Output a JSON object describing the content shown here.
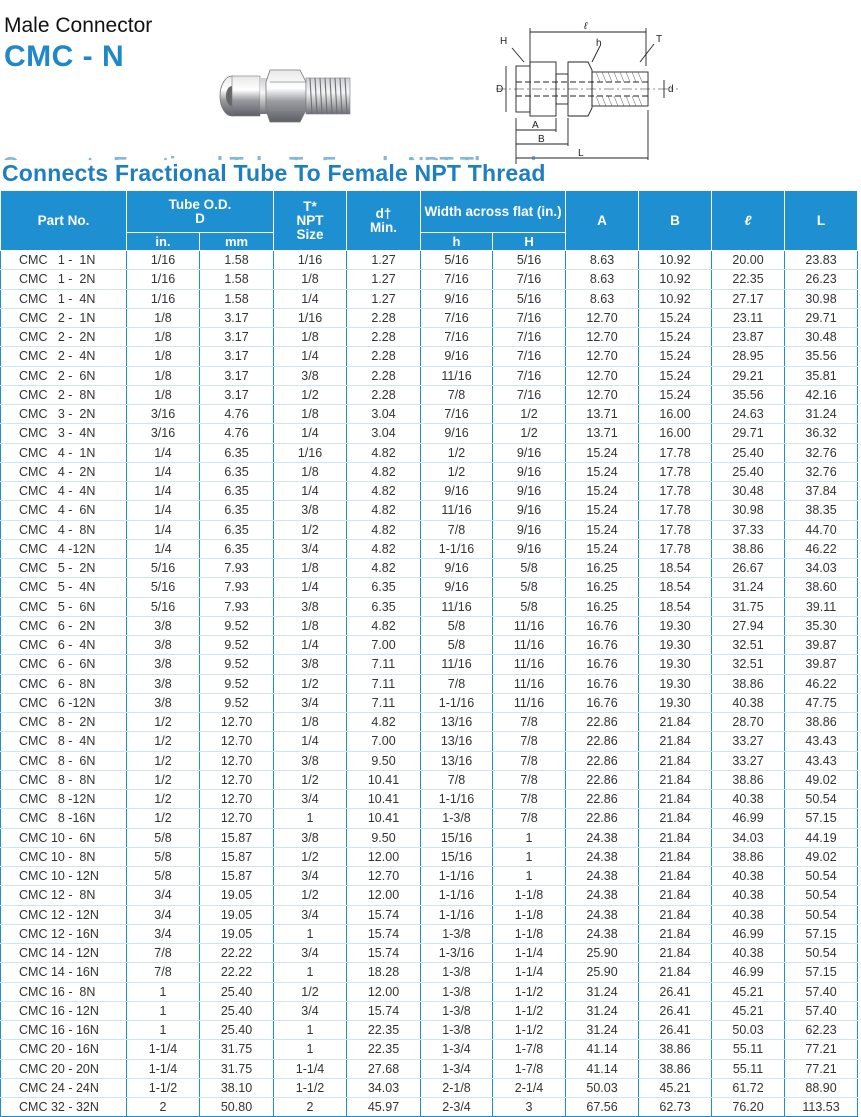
{
  "header": {
    "subtitle": "Male Connector",
    "title": "CMC - N"
  },
  "diagram": {
    "labels": {
      "l": "ℓ",
      "h": "h",
      "H": "H",
      "T": "T",
      "D": "D",
      "d": "d",
      "A": "A",
      "B": "B",
      "L": "L"
    }
  },
  "section": {
    "heading": "Connects Fractional Tube To Female NPT Thread"
  },
  "table": {
    "headers": {
      "part_no": "Part No.",
      "tube_od": "Tube O.D.",
      "tube_od_d": "D",
      "t_npt_1": "T*",
      "t_npt_2": "NPT",
      "t_npt_3": "Size",
      "d_min_1": "d†",
      "d_min_2": "Min.",
      "width": "Width across flat (in.)",
      "a": "A",
      "b": "B",
      "l_small": "ℓ",
      "l_big": "L",
      "in": "in.",
      "mm": "mm",
      "h": "h",
      "H": "H"
    },
    "rows": [
      [
        "CMC   1 -  1N",
        "1/16",
        "1.58",
        "1/16",
        "1.27",
        "5/16",
        "5/16",
        "8.63",
        "10.92",
        "20.00",
        "23.83"
      ],
      [
        "CMC   1 -  2N",
        "1/16",
        "1.58",
        "1/8",
        "1.27",
        "7/16",
        "7/16",
        "8.63",
        "10.92",
        "22.35",
        "26.23"
      ],
      [
        "CMC   1 -  4N",
        "1/16",
        "1.58",
        "1/4",
        "1.27",
        "9/16",
        "5/16",
        "8.63",
        "10.92",
        "27.17",
        "30.98"
      ],
      [
        "CMC   2 -  1N",
        "1/8",
        "3.17",
        "1/16",
        "2.28",
        "7/16",
        "7/16",
        "12.70",
        "15.24",
        "23.11",
        "29.71"
      ],
      [
        "CMC   2 -  2N",
        "1/8",
        "3.17",
        "1/8",
        "2.28",
        "7/16",
        "7/16",
        "12.70",
        "15.24",
        "23.87",
        "30.48"
      ],
      [
        "CMC   2 -  4N",
        "1/8",
        "3.17",
        "1/4",
        "2.28",
        "9/16",
        "7/16",
        "12.70",
        "15.24",
        "28.95",
        "35.56"
      ],
      [
        "CMC   2 -  6N",
        "1/8",
        "3.17",
        "3/8",
        "2.28",
        "11/16",
        "7/16",
        "12.70",
        "15.24",
        "29.21",
        "35.81"
      ],
      [
        "CMC   2 -  8N",
        "1/8",
        "3.17",
        "1/2",
        "2.28",
        "7/8",
        "7/16",
        "12.70",
        "15.24",
        "35.56",
        "42.16"
      ],
      [
        "CMC   3 -  2N",
        "3/16",
        "4.76",
        "1/8",
        "3.04",
        "7/16",
        "1/2",
        "13.71",
        "16.00",
        "24.63",
        "31.24"
      ],
      [
        "CMC   3 -  4N",
        "3/16",
        "4.76",
        "1/4",
        "3.04",
        "9/16",
        "1/2",
        "13.71",
        "16.00",
        "29.71",
        "36.32"
      ],
      [
        "CMC   4 -  1N",
        "1/4",
        "6.35",
        "1/16",
        "4.82",
        "1/2",
        "9/16",
        "15.24",
        "17.78",
        "25.40",
        "32.76"
      ],
      [
        "CMC   4 -  2N",
        "1/4",
        "6.35",
        "1/8",
        "4.82",
        "1/2",
        "9/16",
        "15.24",
        "17.78",
        "25.40",
        "32.76"
      ],
      [
        "CMC   4 -  4N",
        "1/4",
        "6.35",
        "1/4",
        "4.82",
        "9/16",
        "9/16",
        "15.24",
        "17.78",
        "30.48",
        "37.84"
      ],
      [
        "CMC   4 -  6N",
        "1/4",
        "6.35",
        "3/8",
        "4.82",
        "11/16",
        "9/16",
        "15.24",
        "17.78",
        "30.98",
        "38.35"
      ],
      [
        "CMC   4 -  8N",
        "1/4",
        "6.35",
        "1/2",
        "4.82",
        "7/8",
        "9/16",
        "15.24",
        "17.78",
        "37.33",
        "44.70"
      ],
      [
        "CMC   4 -12N",
        "1/4",
        "6.35",
        "3/4",
        "4.82",
        "1-1/16",
        "9/16",
        "15.24",
        "17.78",
        "38.86",
        "46.22"
      ],
      [
        "CMC   5 -  2N",
        "5/16",
        "7.93",
        "1/8",
        "4.82",
        "9/16",
        "5/8",
        "16.25",
        "18.54",
        "26.67",
        "34.03"
      ],
      [
        "CMC   5 -  4N",
        "5/16",
        "7.93",
        "1/4",
        "6.35",
        "9/16",
        "5/8",
        "16.25",
        "18.54",
        "31.24",
        "38.60"
      ],
      [
        "CMC   5 -  6N",
        "5/16",
        "7.93",
        "3/8",
        "6.35",
        "11/16",
        "5/8",
        "16.25",
        "18.54",
        "31.75",
        "39.11"
      ],
      [
        "CMC   6 -  2N",
        "3/8",
        "9.52",
        "1/8",
        "4.82",
        "5/8",
        "11/16",
        "16.76",
        "19.30",
        "27.94",
        "35.30"
      ],
      [
        "CMC   6 -  4N",
        "3/8",
        "9.52",
        "1/4",
        "7.00",
        "5/8",
        "11/16",
        "16.76",
        "19.30",
        "32.51",
        "39.87"
      ],
      [
        "CMC   6 -  6N",
        "3/8",
        "9.52",
        "3/8",
        "7.11",
        "11/16",
        "11/16",
        "16.76",
        "19.30",
        "32.51",
        "39.87"
      ],
      [
        "CMC   6 -  8N",
        "3/8",
        "9.52",
        "1/2",
        "7.11",
        "7/8",
        "11/16",
        "16.76",
        "19.30",
        "38.86",
        "46.22"
      ],
      [
        "CMC   6 -12N",
        "3/8",
        "9.52",
        "3/4",
        "7.11",
        "1-1/16",
        "11/16",
        "16.76",
        "19.30",
        "40.38",
        "47.75"
      ],
      [
        "CMC   8 -  2N",
        "1/2",
        "12.70",
        "1/8",
        "4.82",
        "13/16",
        "7/8",
        "22.86",
        "21.84",
        "28.70",
        "38.86"
      ],
      [
        "CMC   8 -  4N",
        "1/2",
        "12.70",
        "1/4",
        "7.00",
        "13/16",
        "7/8",
        "22.86",
        "21.84",
        "33.27",
        "43.43"
      ],
      [
        "CMC   8 -  6N",
        "1/2",
        "12.70",
        "3/8",
        "9.50",
        "13/16",
        "7/8",
        "22.86",
        "21.84",
        "33.27",
        "43.43"
      ],
      [
        "CMC   8 -  8N",
        "1/2",
        "12.70",
        "1/2",
        "10.41",
        "7/8",
        "7/8",
        "22.86",
        "21.84",
        "38.86",
        "49.02"
      ],
      [
        "CMC   8 -12N",
        "1/2",
        "12.70",
        "3/4",
        "10.41",
        "1-1/16",
        "7/8",
        "22.86",
        "21.84",
        "40.38",
        "50.54"
      ],
      [
        "CMC   8 -16N",
        "1/2",
        "12.70",
        "1",
        "10.41",
        "1-3/8",
        "7/8",
        "22.86",
        "21.84",
        "46.99",
        "57.15"
      ],
      [
        "CMC 10 -  6N",
        "5/8",
        "15.87",
        "3/8",
        "9.50",
        "15/16",
        "1",
        "24.38",
        "21.84",
        "34.03",
        "44.19"
      ],
      [
        "CMC 10 -  8N",
        "5/8",
        "15.87",
        "1/2",
        "12.00",
        "15/16",
        "1",
        "24.38",
        "21.84",
        "38.86",
        "49.02"
      ],
      [
        "CMC 10 - 12N",
        "5/8",
        "15.87",
        "3/4",
        "12.70",
        "1-1/16",
        "1",
        "24.38",
        "21.84",
        "40.38",
        "50.54"
      ],
      [
        "CMC 12 -  8N",
        "3/4",
        "19.05",
        "1/2",
        "12.00",
        "1-1/16",
        "1-1/8",
        "24.38",
        "21.84",
        "40.38",
        "50.54"
      ],
      [
        "CMC 12 - 12N",
        "3/4",
        "19.05",
        "3/4",
        "15.74",
        "1-1/16",
        "1-1/8",
        "24.38",
        "21.84",
        "40.38",
        "50.54"
      ],
      [
        "CMC 12 - 16N",
        "3/4",
        "19.05",
        "1",
        "15.74",
        "1-3/8",
        "1-1/8",
        "24.38",
        "21.84",
        "46.99",
        "57.15"
      ],
      [
        "CMC 14 - 12N",
        "7/8",
        "22.22",
        "3/4",
        "15.74",
        "1-3/16",
        "1-1/4",
        "25.90",
        "21.84",
        "40.38",
        "50.54"
      ],
      [
        "CMC 14 - 16N",
        "7/8",
        "22.22",
        "1",
        "18.28",
        "1-3/8",
        "1-1/4",
        "25.90",
        "21.84",
        "46.99",
        "57.15"
      ],
      [
        "CMC 16 -  8N",
        "1",
        "25.40",
        "1/2",
        "12.00",
        "1-3/8",
        "1-1/2",
        "31.24",
        "26.41",
        "45.21",
        "57.40"
      ],
      [
        "CMC 16 - 12N",
        "1",
        "25.40",
        "3/4",
        "15.74",
        "1-3/8",
        "1-1/2",
        "31.24",
        "26.41",
        "45.21",
        "57.40"
      ],
      [
        "CMC 16 - 16N",
        "1",
        "25.40",
        "1",
        "22.35",
        "1-3/8",
        "1-1/2",
        "31.24",
        "26.41",
        "50.03",
        "62.23"
      ],
      [
        "CMC 20 - 16N",
        "1-1/4",
        "31.75",
        "1",
        "22.35",
        "1-3/4",
        "1-7/8",
        "41.14",
        "38.86",
        "55.11",
        "77.21"
      ],
      [
        "CMC 20 - 20N",
        "1-1/4",
        "31.75",
        "1-1/4",
        "27.68",
        "1-3/4",
        "1-7/8",
        "41.14",
        "38.86",
        "55.11",
        "77.21"
      ],
      [
        "CMC 24 - 24N",
        "1-1/2",
        "38.10",
        "1-1/2",
        "34.03",
        "2-1/8",
        "2-1/4",
        "50.03",
        "45.21",
        "61.72",
        "88.90"
      ],
      [
        "CMC 32 - 32N",
        "2",
        "50.80",
        "2",
        "45.97",
        "2-3/4",
        "3",
        "67.56",
        "62.73",
        "76.20",
        "113.53"
      ]
    ]
  }
}
